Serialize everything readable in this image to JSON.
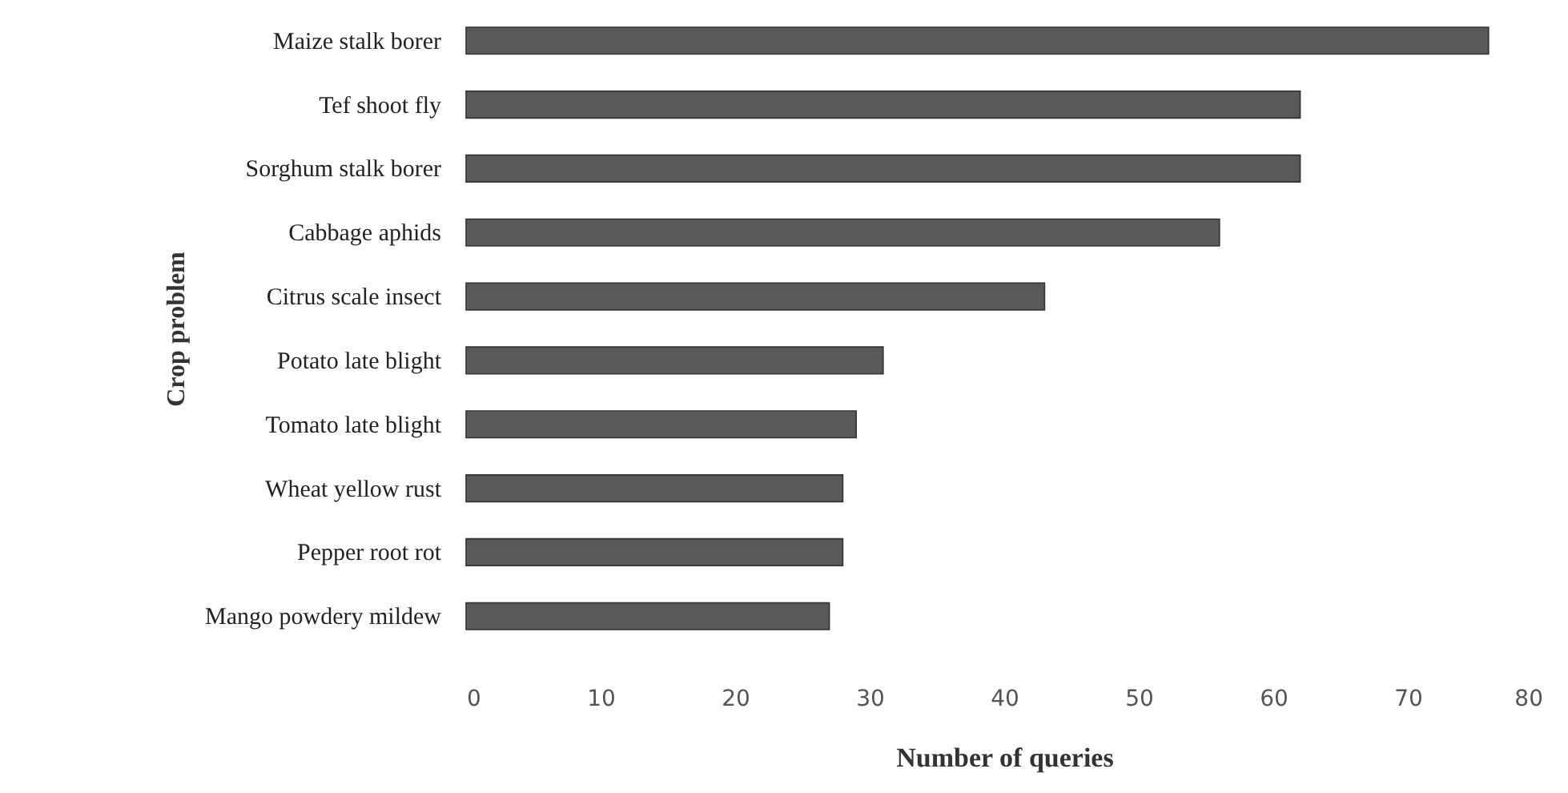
{
  "chart_data": {
    "type": "bar",
    "orientation": "horizontal",
    "xlabel": "Number of queries",
    "ylabel": "Crop problem",
    "categories": [
      "Maize stalk borer",
      "Tef shoot fly",
      "Sorghum stalk borer",
      "Cabbage aphids",
      "Citrus scale insect",
      "Potato late blight",
      "Tomato late blight",
      "Wheat yellow rust",
      "Pepper root rot",
      "Mango powdery mildew"
    ],
    "values": [
      76,
      62,
      62,
      56,
      43,
      31,
      29,
      28,
      28,
      27
    ],
    "color": "#595959",
    "xlim": [
      0,
      80
    ],
    "xticks": [
      0,
      10,
      20,
      30,
      40,
      50,
      60,
      70,
      80
    ],
    "grid": false
  }
}
